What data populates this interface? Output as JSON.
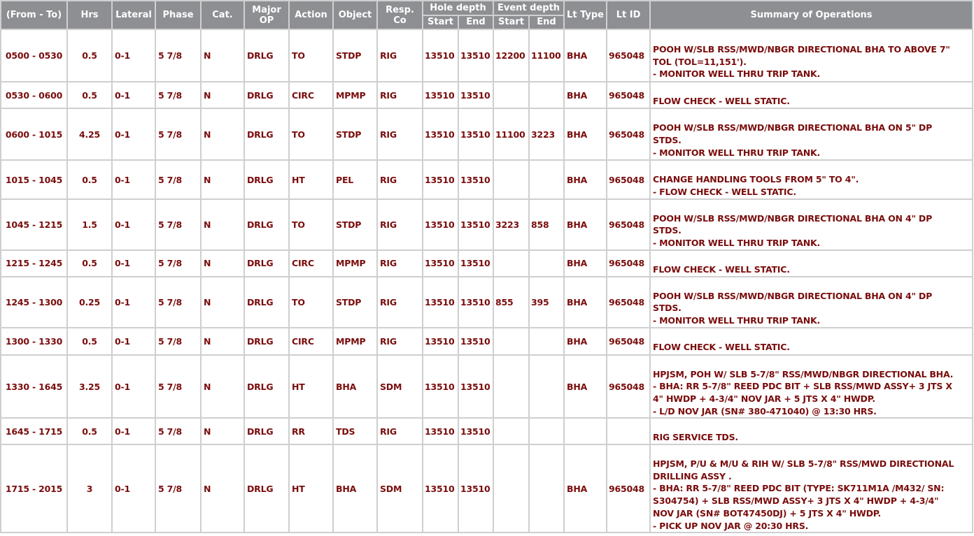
{
  "headers": {
    "from_to": "(From - To)",
    "hrs": "Hrs",
    "lateral": "Lateral",
    "phase": "Phase",
    "cat": "Cat.",
    "major_op": "Major OP",
    "action": "Action",
    "object": "Object",
    "resp_co": "Resp. Co",
    "hole_depth": "Hole depth",
    "event_depth": "Event depth",
    "start": "Start",
    "end": "End",
    "lt_type": "Lt Type",
    "lt_id": "Lt ID",
    "summary": "Summary of Operations"
  },
  "rows": [
    {
      "time": "0500 - 0530",
      "hrs": "0.5",
      "lateral": "0-1",
      "phase": "5 7/8",
      "cat": "N",
      "major": "DRLG",
      "action": "TO",
      "object": "STDP",
      "resp": "RIG",
      "hs": "13510",
      "he": "13510",
      "es": "12200",
      "ee": "11100",
      "lttype": "BHA",
      "ltid": "965048",
      "summary": "POOH W/SLB RSS/MWD/NBGR DIRECTIONAL BHA TO ABOVE 7\"\nTOL (TOL=11,151').\n- MONITOR WELL THRU TRIP TANK."
    },
    {
      "time": "0530 - 0600",
      "hrs": "0.5",
      "lateral": "0-1",
      "phase": "5 7/8",
      "cat": "N",
      "major": "DRLG",
      "action": "CIRC",
      "object": "MPMP",
      "resp": "RIG",
      "hs": "13510",
      "he": "13510",
      "es": "",
      "ee": "",
      "lttype": "BHA",
      "ltid": "965048",
      "summary": "FLOW CHECK - WELL STATIC."
    },
    {
      "time": "0600 - 1015",
      "hrs": "4.25",
      "lateral": "0-1",
      "phase": "5 7/8",
      "cat": "N",
      "major": "DRLG",
      "action": "TO",
      "object": "STDP",
      "resp": "RIG",
      "hs": "13510",
      "he": "13510",
      "es": "11100",
      "ee": "3223",
      "lttype": "BHA",
      "ltid": "965048",
      "summary": "POOH W/SLB RSS/MWD/NBGR DIRECTIONAL BHA ON 5\" DP\nSTDS.\n- MONITOR WELL THRU TRIP TANK."
    },
    {
      "time": "1015 - 1045",
      "hrs": "0.5",
      "lateral": "0-1",
      "phase": "5 7/8",
      "cat": "N",
      "major": "DRLG",
      "action": "HT",
      "object": "PEL",
      "resp": "RIG",
      "hs": "13510",
      "he": "13510",
      "es": "",
      "ee": "",
      "lttype": "BHA",
      "ltid": "965048",
      "summary": "CHANGE HANDLING TOOLS FROM 5\" TO 4\".\n- FLOW CHECK - WELL STATIC."
    },
    {
      "time": "1045 - 1215",
      "hrs": "1.5",
      "lateral": "0-1",
      "phase": "5 7/8",
      "cat": "N",
      "major": "DRLG",
      "action": "TO",
      "object": "STDP",
      "resp": "RIG",
      "hs": "13510",
      "he": "13510",
      "es": "3223",
      "ee": "858",
      "lttype": "BHA",
      "ltid": "965048",
      "summary": "POOH W/SLB RSS/MWD/NBGR DIRECTIONAL BHA ON 4\" DP\nSTDS.\n- MONITOR WELL THRU TRIP TANK."
    },
    {
      "time": "1215 - 1245",
      "hrs": "0.5",
      "lateral": "0-1",
      "phase": "5 7/8",
      "cat": "N",
      "major": "DRLG",
      "action": "CIRC",
      "object": "MPMP",
      "resp": "RIG",
      "hs": "13510",
      "he": "13510",
      "es": "",
      "ee": "",
      "lttype": "BHA",
      "ltid": "965048",
      "summary": "FLOW CHECK - WELL STATIC."
    },
    {
      "time": "1245 - 1300",
      "hrs": "0.25",
      "lateral": "0-1",
      "phase": "5 7/8",
      "cat": "N",
      "major": "DRLG",
      "action": "TO",
      "object": "STDP",
      "resp": "RIG",
      "hs": "13510",
      "he": "13510",
      "es": "855",
      "ee": "395",
      "lttype": "BHA",
      "ltid": "965048",
      "summary": "POOH W/SLB RSS/MWD/NBGR DIRECTIONAL BHA ON 4\" DP\nSTDS.\n- MONITOR WELL THRU TRIP TANK."
    },
    {
      "time": "1300 - 1330",
      "hrs": "0.5",
      "lateral": "0-1",
      "phase": "5 7/8",
      "cat": "N",
      "major": "DRLG",
      "action": "CIRC",
      "object": "MPMP",
      "resp": "RIG",
      "hs": "13510",
      "he": "13510",
      "es": "",
      "ee": "",
      "lttype": "BHA",
      "ltid": "965048",
      "summary": "FLOW CHECK - WELL STATIC."
    },
    {
      "time": "1330 - 1645",
      "hrs": "3.25",
      "lateral": "0-1",
      "phase": "5 7/8",
      "cat": "N",
      "major": "DRLG",
      "action": "HT",
      "object": "BHA",
      "resp": "SDM",
      "hs": "13510",
      "he": "13510",
      "es": "",
      "ee": "",
      "lttype": "BHA",
      "ltid": "965048",
      "summary": "HPJSM, POH W/ SLB 5-7/8\" RSS/MWD/NBGR DIRECTIONAL BHA.\n- BHA: RR 5-7/8\" REED PDC BIT + SLB RSS/MWD ASSY+ 3 JTS X\n4\" HWDP + 4-3/4\" NOV JAR + 5 JTS X 4\" HWDP.\n- L/D NOV JAR (SN# 380-471040) @ 13:30 HRS."
    },
    {
      "time": "1645 - 1715",
      "hrs": "0.5",
      "lateral": "0-1",
      "phase": "5 7/8",
      "cat": "N",
      "major": "DRLG",
      "action": "RR",
      "object": "TDS",
      "resp": "RIG",
      "hs": "13510",
      "he": "13510",
      "es": "",
      "ee": "",
      "lttype": "",
      "ltid": "",
      "summary": "RIG SERVICE TDS."
    },
    {
      "time": "1715 - 2015",
      "hrs": "3",
      "lateral": "0-1",
      "phase": "5 7/8",
      "cat": "N",
      "major": "DRLG",
      "action": "HT",
      "object": "BHA",
      "resp": "SDM",
      "hs": "13510",
      "he": "13510",
      "es": "",
      "ee": "",
      "lttype": "BHA",
      "ltid": "965048",
      "summary": "HPJSM, P/U & M/U & RIH W/ SLB 5-7/8\" RSS/MWD DIRECTIONAL\nDRILLING ASSY .\n- BHA: RR 5-7/8\" REED PDC BIT (TYPE: SK711M1A /M432/ SN:\nS304754) + SLB RSS/MWD ASSY+ 3 JTS X 4\" HWDP + 4-3/4\"\nNOV JAR (SN# BOT47450DJ) + 5 JTS X 4\" HWDP.\n- PICK UP NOV JAR @ 20:30 HRS."
    }
  ],
  "colors": {
    "header_bg": "#8e8f93",
    "text": "#7a0c0c",
    "border": "#cfcfcf"
  }
}
